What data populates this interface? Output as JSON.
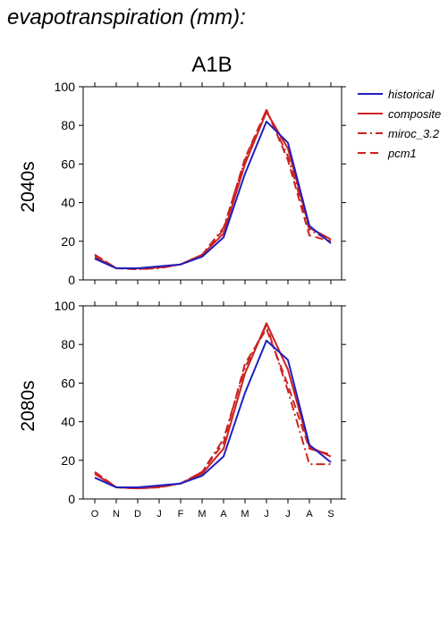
{
  "figure": {
    "title": "evapotranspiration (mm):",
    "scenario": "A1B"
  },
  "legend": [
    {
      "label": "historical",
      "color": "#1f1fbf",
      "dash": "solid"
    },
    {
      "label": "composite",
      "color": "#cc2222",
      "dash": "solid"
    },
    {
      "label": "miroc_3.2",
      "color": "#cc2222",
      "dash": "dashdot"
    },
    {
      "label": "pcm1",
      "color": "#cc2222",
      "dash": "dashed"
    }
  ],
  "chart_data": [
    {
      "type": "line",
      "panel_label": "2040s",
      "categories": [
        "O",
        "N",
        "D",
        "J",
        "F",
        "M",
        "A",
        "M",
        "J",
        "J",
        "A",
        "S"
      ],
      "ylim": [
        0,
        100
      ],
      "yticks": [
        0,
        20,
        40,
        60,
        80,
        100
      ],
      "grid": false,
      "series": [
        {
          "name": "historical",
          "values": [
            11,
            6,
            6,
            7,
            8,
            12,
            22,
            55,
            82,
            71,
            28,
            19
          ]
        },
        {
          "name": "composite",
          "values": [
            12,
            6,
            6,
            6.5,
            8,
            13,
            24,
            60,
            87,
            68,
            27,
            21
          ]
        },
        {
          "name": "miroc_3.2",
          "values": [
            13,
            6,
            5.5,
            6,
            8,
            13,
            27,
            62,
            88,
            64,
            26,
            20
          ]
        },
        {
          "name": "pcm1",
          "values": [
            13,
            6,
            5.5,
            6.5,
            8,
            13,
            26,
            63,
            88,
            62,
            23,
            20
          ]
        }
      ]
    },
    {
      "type": "line",
      "panel_label": "2080s",
      "categories": [
        "O",
        "N",
        "D",
        "J",
        "F",
        "M",
        "A",
        "M",
        "J",
        "J",
        "A",
        "S"
      ],
      "ylim": [
        0,
        100
      ],
      "yticks": [
        0,
        20,
        40,
        60,
        80,
        100
      ],
      "grid": false,
      "series": [
        {
          "name": "historical",
          "values": [
            11,
            6,
            6,
            7,
            8,
            12,
            22,
            55,
            82,
            72,
            28,
            19
          ]
        },
        {
          "name": "composite",
          "values": [
            13,
            6,
            5.5,
            6.5,
            8,
            13,
            26,
            65,
            91,
            67,
            27,
            22
          ]
        },
        {
          "name": "miroc_3.2",
          "values": [
            14,
            6,
            5.5,
            6,
            8,
            14,
            31,
            68,
            90,
            56,
            18,
            18
          ]
        },
        {
          "name": "pcm1",
          "values": [
            14,
            6,
            5.5,
            6,
            8,
            14,
            29,
            70,
            88,
            59,
            26,
            23
          ]
        }
      ]
    }
  ]
}
